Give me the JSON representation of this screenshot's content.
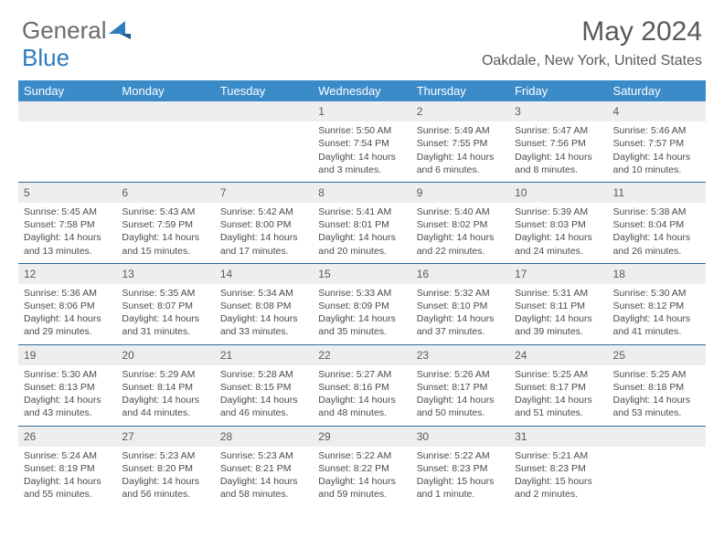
{
  "logo": {
    "word1": "General",
    "word2": "Blue"
  },
  "title": "May 2024",
  "location": "Oakdale, New York, United States",
  "colors": {
    "header_bg": "#3b8bc9",
    "header_text": "#ffffff",
    "daynum_bg": "#eeeeee",
    "row_border": "#2f6a9e",
    "body_text": "#4a4a4a",
    "title_text": "#5a5a5a"
  },
  "day_names": [
    "Sunday",
    "Monday",
    "Tuesday",
    "Wednesday",
    "Thursday",
    "Friday",
    "Saturday"
  ],
  "weeks": [
    [
      null,
      null,
      null,
      {
        "n": "1",
        "sr": "Sunrise: 5:50 AM",
        "ss": "Sunset: 7:54 PM",
        "d1": "Daylight: 14 hours",
        "d2": "and 3 minutes."
      },
      {
        "n": "2",
        "sr": "Sunrise: 5:49 AM",
        "ss": "Sunset: 7:55 PM",
        "d1": "Daylight: 14 hours",
        "d2": "and 6 minutes."
      },
      {
        "n": "3",
        "sr": "Sunrise: 5:47 AM",
        "ss": "Sunset: 7:56 PM",
        "d1": "Daylight: 14 hours",
        "d2": "and 8 minutes."
      },
      {
        "n": "4",
        "sr": "Sunrise: 5:46 AM",
        "ss": "Sunset: 7:57 PM",
        "d1": "Daylight: 14 hours",
        "d2": "and 10 minutes."
      }
    ],
    [
      {
        "n": "5",
        "sr": "Sunrise: 5:45 AM",
        "ss": "Sunset: 7:58 PM",
        "d1": "Daylight: 14 hours",
        "d2": "and 13 minutes."
      },
      {
        "n": "6",
        "sr": "Sunrise: 5:43 AM",
        "ss": "Sunset: 7:59 PM",
        "d1": "Daylight: 14 hours",
        "d2": "and 15 minutes."
      },
      {
        "n": "7",
        "sr": "Sunrise: 5:42 AM",
        "ss": "Sunset: 8:00 PM",
        "d1": "Daylight: 14 hours",
        "d2": "and 17 minutes."
      },
      {
        "n": "8",
        "sr": "Sunrise: 5:41 AM",
        "ss": "Sunset: 8:01 PM",
        "d1": "Daylight: 14 hours",
        "d2": "and 20 minutes."
      },
      {
        "n": "9",
        "sr": "Sunrise: 5:40 AM",
        "ss": "Sunset: 8:02 PM",
        "d1": "Daylight: 14 hours",
        "d2": "and 22 minutes."
      },
      {
        "n": "10",
        "sr": "Sunrise: 5:39 AM",
        "ss": "Sunset: 8:03 PM",
        "d1": "Daylight: 14 hours",
        "d2": "and 24 minutes."
      },
      {
        "n": "11",
        "sr": "Sunrise: 5:38 AM",
        "ss": "Sunset: 8:04 PM",
        "d1": "Daylight: 14 hours",
        "d2": "and 26 minutes."
      }
    ],
    [
      {
        "n": "12",
        "sr": "Sunrise: 5:36 AM",
        "ss": "Sunset: 8:06 PM",
        "d1": "Daylight: 14 hours",
        "d2": "and 29 minutes."
      },
      {
        "n": "13",
        "sr": "Sunrise: 5:35 AM",
        "ss": "Sunset: 8:07 PM",
        "d1": "Daylight: 14 hours",
        "d2": "and 31 minutes."
      },
      {
        "n": "14",
        "sr": "Sunrise: 5:34 AM",
        "ss": "Sunset: 8:08 PM",
        "d1": "Daylight: 14 hours",
        "d2": "and 33 minutes."
      },
      {
        "n": "15",
        "sr": "Sunrise: 5:33 AM",
        "ss": "Sunset: 8:09 PM",
        "d1": "Daylight: 14 hours",
        "d2": "and 35 minutes."
      },
      {
        "n": "16",
        "sr": "Sunrise: 5:32 AM",
        "ss": "Sunset: 8:10 PM",
        "d1": "Daylight: 14 hours",
        "d2": "and 37 minutes."
      },
      {
        "n": "17",
        "sr": "Sunrise: 5:31 AM",
        "ss": "Sunset: 8:11 PM",
        "d1": "Daylight: 14 hours",
        "d2": "and 39 minutes."
      },
      {
        "n": "18",
        "sr": "Sunrise: 5:30 AM",
        "ss": "Sunset: 8:12 PM",
        "d1": "Daylight: 14 hours",
        "d2": "and 41 minutes."
      }
    ],
    [
      {
        "n": "19",
        "sr": "Sunrise: 5:30 AM",
        "ss": "Sunset: 8:13 PM",
        "d1": "Daylight: 14 hours",
        "d2": "and 43 minutes."
      },
      {
        "n": "20",
        "sr": "Sunrise: 5:29 AM",
        "ss": "Sunset: 8:14 PM",
        "d1": "Daylight: 14 hours",
        "d2": "and 44 minutes."
      },
      {
        "n": "21",
        "sr": "Sunrise: 5:28 AM",
        "ss": "Sunset: 8:15 PM",
        "d1": "Daylight: 14 hours",
        "d2": "and 46 minutes."
      },
      {
        "n": "22",
        "sr": "Sunrise: 5:27 AM",
        "ss": "Sunset: 8:16 PM",
        "d1": "Daylight: 14 hours",
        "d2": "and 48 minutes."
      },
      {
        "n": "23",
        "sr": "Sunrise: 5:26 AM",
        "ss": "Sunset: 8:17 PM",
        "d1": "Daylight: 14 hours",
        "d2": "and 50 minutes."
      },
      {
        "n": "24",
        "sr": "Sunrise: 5:25 AM",
        "ss": "Sunset: 8:17 PM",
        "d1": "Daylight: 14 hours",
        "d2": "and 51 minutes."
      },
      {
        "n": "25",
        "sr": "Sunrise: 5:25 AM",
        "ss": "Sunset: 8:18 PM",
        "d1": "Daylight: 14 hours",
        "d2": "and 53 minutes."
      }
    ],
    [
      {
        "n": "26",
        "sr": "Sunrise: 5:24 AM",
        "ss": "Sunset: 8:19 PM",
        "d1": "Daylight: 14 hours",
        "d2": "and 55 minutes."
      },
      {
        "n": "27",
        "sr": "Sunrise: 5:23 AM",
        "ss": "Sunset: 8:20 PM",
        "d1": "Daylight: 14 hours",
        "d2": "and 56 minutes."
      },
      {
        "n": "28",
        "sr": "Sunrise: 5:23 AM",
        "ss": "Sunset: 8:21 PM",
        "d1": "Daylight: 14 hours",
        "d2": "and 58 minutes."
      },
      {
        "n": "29",
        "sr": "Sunrise: 5:22 AM",
        "ss": "Sunset: 8:22 PM",
        "d1": "Daylight: 14 hours",
        "d2": "and 59 minutes."
      },
      {
        "n": "30",
        "sr": "Sunrise: 5:22 AM",
        "ss": "Sunset: 8:23 PM",
        "d1": "Daylight: 15 hours",
        "d2": "and 1 minute."
      },
      {
        "n": "31",
        "sr": "Sunrise: 5:21 AM",
        "ss": "Sunset: 8:23 PM",
        "d1": "Daylight: 15 hours",
        "d2": "and 2 minutes."
      },
      null
    ]
  ]
}
